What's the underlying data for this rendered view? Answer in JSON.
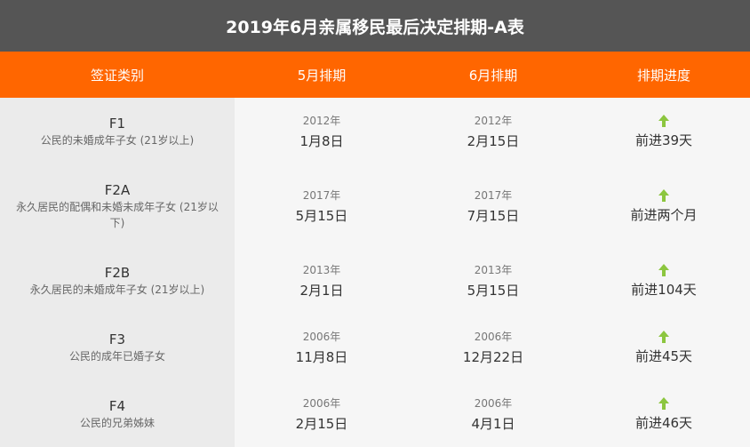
{
  "title": "2019年6月亲属移民最后决定排期-A表",
  "headers": {
    "category": "签证类别",
    "may": "5月排期",
    "june": "6月排期",
    "progress": "排期进度"
  },
  "colors": {
    "title_bg": "#555555",
    "header_bg": "#ff6600",
    "arrow": "#8cc63f"
  },
  "rows": [
    {
      "code": "F1",
      "desc": "公民的未婚成年子女 (21岁以上)",
      "may_year": "2012年",
      "may_date": "1月8日",
      "june_year": "2012年",
      "june_date": "2月15日",
      "progress": "前进39天",
      "icon": "arrow-up-icon"
    },
    {
      "code": "F2A",
      "desc": "永久居民的配偶和未婚未成年子女 (21岁以下)",
      "may_year": "2017年",
      "may_date": "5月15日",
      "june_year": "2017年",
      "june_date": "7月15日",
      "progress": "前进两个月",
      "icon": "arrow-up-icon"
    },
    {
      "code": "F2B",
      "desc": "永久居民的未婚成年子女 (21岁以上)",
      "may_year": "2013年",
      "may_date": "2月1日",
      "june_year": "2013年",
      "june_date": "5月15日",
      "progress": "前进104天",
      "icon": "arrow-up-icon"
    },
    {
      "code": "F3",
      "desc": "公民的成年已婚子女",
      "may_year": "2006年",
      "may_date": "11月8日",
      "june_year": "2006年",
      "june_date": "12月22日",
      "progress": "前进45天",
      "icon": "arrow-up-icon"
    },
    {
      "code": "F4",
      "desc": "公民的兄弟姊妹",
      "may_year": "2006年",
      "may_date": "2月15日",
      "june_year": "2006年",
      "june_date": "4月1日",
      "progress": "前进46天",
      "icon": "arrow-up-icon"
    }
  ]
}
